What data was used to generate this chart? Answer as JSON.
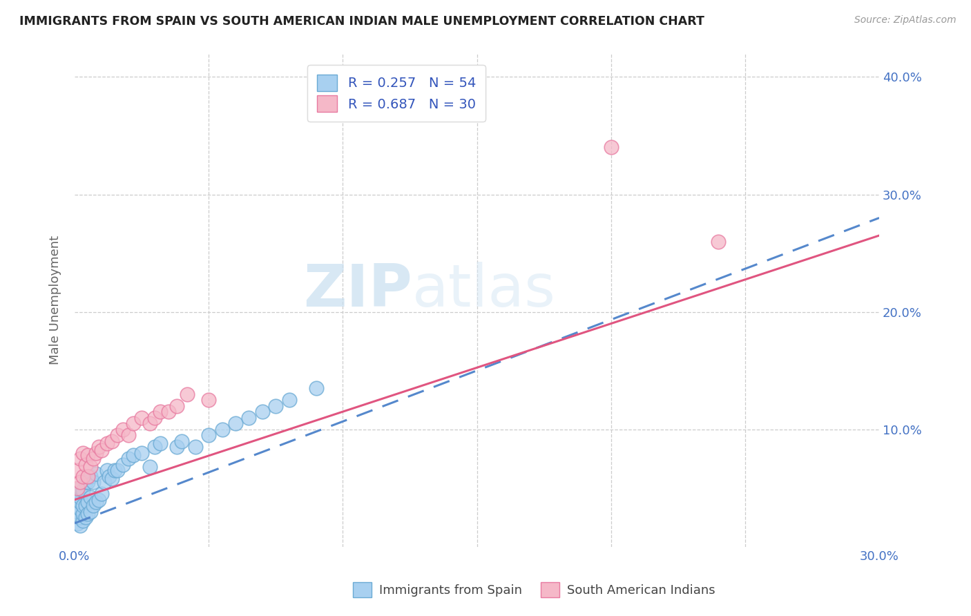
{
  "title": "IMMIGRANTS FROM SPAIN VS SOUTH AMERICAN INDIAN MALE UNEMPLOYMENT CORRELATION CHART",
  "source": "Source: ZipAtlas.com",
  "ylabel": "Male Unemployment",
  "xlim": [
    0,
    0.3
  ],
  "ylim": [
    0,
    0.42
  ],
  "xticks": [
    0.0,
    0.05,
    0.1,
    0.15,
    0.2,
    0.25,
    0.3
  ],
  "yticks": [
    0.0,
    0.1,
    0.2,
    0.3,
    0.4
  ],
  "legend_label1": "R = 0.257   N = 54",
  "legend_label2": "R = 0.687   N = 30",
  "legend_xlabel1": "Immigrants from Spain",
  "legend_xlabel2": "South American Indians",
  "color_blue": "#a8d0f0",
  "color_pink": "#f5b8c8",
  "color_blue_edge": "#6aaad4",
  "color_pink_edge": "#e87aa0",
  "color_blue_line": "#5588cc",
  "color_pink_line": "#e05580",
  "watermark_zip": "ZIP",
  "watermark_atlas": "atlas",
  "scatter1_x": [
    0.001,
    0.001,
    0.001,
    0.001,
    0.001,
    0.002,
    0.002,
    0.002,
    0.002,
    0.002,
    0.002,
    0.003,
    0.003,
    0.003,
    0.003,
    0.004,
    0.004,
    0.004,
    0.005,
    0.005,
    0.005,
    0.006,
    0.006,
    0.006,
    0.007,
    0.007,
    0.008,
    0.008,
    0.009,
    0.01,
    0.011,
    0.012,
    0.013,
    0.014,
    0.015,
    0.016,
    0.018,
    0.02,
    0.022,
    0.025,
    0.028,
    0.03,
    0.032,
    0.038,
    0.04,
    0.045,
    0.05,
    0.055,
    0.06,
    0.065,
    0.07,
    0.075,
    0.08,
    0.09
  ],
  "scatter1_y": [
    0.02,
    0.03,
    0.035,
    0.04,
    0.045,
    0.018,
    0.025,
    0.032,
    0.038,
    0.042,
    0.05,
    0.022,
    0.028,
    0.035,
    0.048,
    0.025,
    0.035,
    0.055,
    0.028,
    0.038,
    0.055,
    0.03,
    0.042,
    0.06,
    0.035,
    0.055,
    0.038,
    0.062,
    0.04,
    0.045,
    0.055,
    0.065,
    0.06,
    0.058,
    0.065,
    0.065,
    0.07,
    0.075,
    0.078,
    0.08,
    0.068,
    0.085,
    0.088,
    0.085,
    0.09,
    0.085,
    0.095,
    0.1,
    0.105,
    0.11,
    0.115,
    0.12,
    0.125,
    0.135
  ],
  "scatter2_x": [
    0.001,
    0.001,
    0.002,
    0.002,
    0.003,
    0.003,
    0.004,
    0.005,
    0.005,
    0.006,
    0.007,
    0.008,
    0.009,
    0.01,
    0.012,
    0.014,
    0.016,
    0.018,
    0.02,
    0.022,
    0.025,
    0.028,
    0.03,
    0.032,
    0.035,
    0.038,
    0.042,
    0.05,
    0.2,
    0.24
  ],
  "scatter2_y": [
    0.05,
    0.065,
    0.055,
    0.075,
    0.06,
    0.08,
    0.07,
    0.06,
    0.078,
    0.068,
    0.075,
    0.08,
    0.085,
    0.082,
    0.088,
    0.09,
    0.095,
    0.1,
    0.095,
    0.105,
    0.11,
    0.105,
    0.11,
    0.115,
    0.115,
    0.12,
    0.13,
    0.125,
    0.34,
    0.26
  ],
  "blue_line_x0": 0.0,
  "blue_line_y0": 0.02,
  "blue_line_x1": 0.3,
  "blue_line_y1": 0.28,
  "pink_line_x0": 0.0,
  "pink_line_y0": 0.04,
  "pink_line_x1": 0.3,
  "pink_line_y1": 0.265
}
